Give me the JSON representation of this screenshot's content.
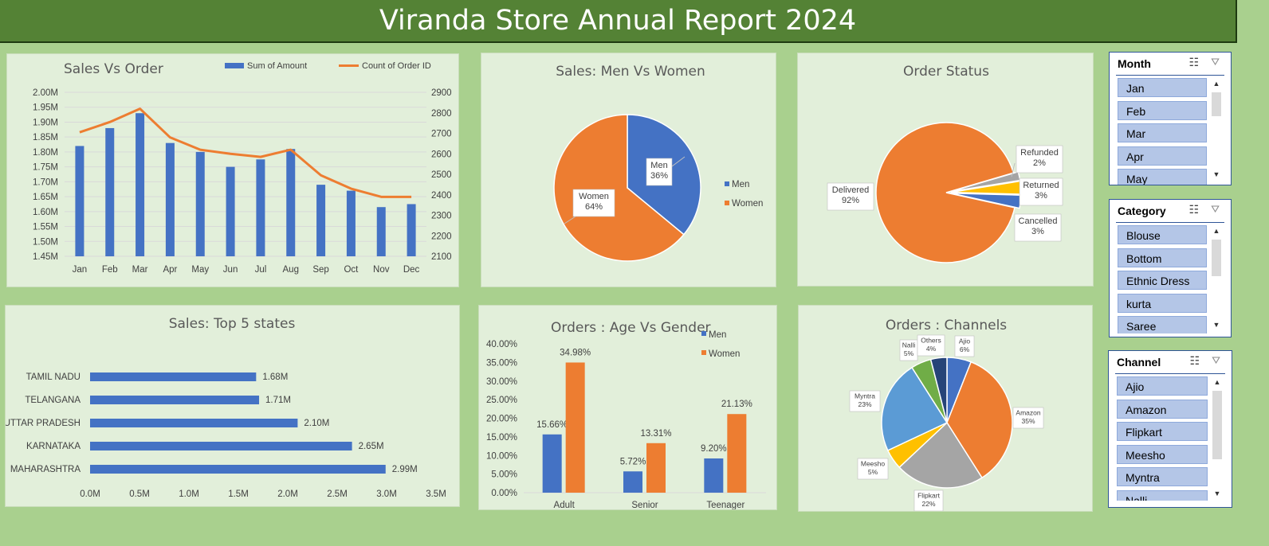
{
  "title": "Viranda Store Annual Report 2024",
  "colors": {
    "blue": "#4472c4",
    "orange": "#ed7d31",
    "gray": "#a5a5a5",
    "gold": "#ffc000",
    "lightblue": "#5b9bd5",
    "green": "#70ad47",
    "navy": "#264478"
  },
  "chart_data": [
    {
      "id": "sales_vs_order",
      "type": "bar",
      "title": "Sales Vs Order",
      "categories": [
        "Jan",
        "Feb",
        "Mar",
        "Apr",
        "May",
        "Jun",
        "Jul",
        "Aug",
        "Sep",
        "Oct",
        "Nov",
        "Dec"
      ],
      "series": [
        {
          "name": "Sum of Amount",
          "type": "bar",
          "axis": "left",
          "values": [
            1.82,
            1.88,
            1.93,
            1.83,
            1.8,
            1.75,
            1.775,
            1.81,
            1.69,
            1.67,
            1.615,
            1.625
          ]
        },
        {
          "name": "Count of Order ID",
          "type": "line",
          "axis": "right",
          "values": [
            2705,
            2755,
            2820,
            2680,
            2620,
            2600,
            2585,
            2620,
            2495,
            2430,
            2390,
            2390
          ]
        }
      ],
      "ylim_left": [
        1.45,
        2.0
      ],
      "ylim_right": [
        2100,
        2900
      ],
      "yticks_left": [
        "1.45M",
        "1.50M",
        "1.55M",
        "1.60M",
        "1.65M",
        "1.70M",
        "1.75M",
        "1.80M",
        "1.85M",
        "1.90M",
        "1.95M",
        "2.00M"
      ],
      "yticks_right": [
        "2100",
        "2200",
        "2300",
        "2400",
        "2500",
        "2600",
        "2700",
        "2800",
        "2900"
      ],
      "legend": "top-right",
      "grid": true
    },
    {
      "id": "sales_men_women",
      "type": "pie",
      "title": "Sales: Men Vs Women",
      "slices": [
        {
          "label": "Men",
          "percent_label": "36%",
          "value": 36
        },
        {
          "label": "Women",
          "percent_label": "64%",
          "value": 64
        }
      ],
      "legend": "right"
    },
    {
      "id": "order_status",
      "type": "pie",
      "title": "Order Status",
      "slices": [
        {
          "label": "Delivered",
          "percent_label": "92%",
          "value": 92
        },
        {
          "label": "Refunded",
          "percent_label": "2%",
          "value": 2
        },
        {
          "label": "Returned",
          "percent_label": "3%",
          "value": 3
        },
        {
          "label": "Cancelled",
          "percent_label": "3%",
          "value": 3
        }
      ]
    },
    {
      "id": "top5_states",
      "type": "bar",
      "orientation": "horizontal",
      "title": "Sales: Top 5 states",
      "categories": [
        "TAMIL NADU",
        "TELANGANA",
        "UTTAR PRADESH",
        "KARNATAKA",
        "MAHARASHTRA"
      ],
      "values": [
        1.68,
        1.71,
        2.1,
        2.65,
        2.99
      ],
      "value_labels": [
        "1.68M",
        "1.71M",
        "2.10M",
        "2.65M",
        "2.99M"
      ],
      "xlim": [
        0,
        3.5
      ],
      "xticks": [
        "0.0M",
        "0.5M",
        "1.0M",
        "1.5M",
        "2.0M",
        "2.5M",
        "3.0M",
        "3.5M"
      ]
    },
    {
      "id": "age_vs_gender",
      "type": "bar",
      "title": "Orders : Age Vs Gender",
      "categories": [
        "Adult",
        "Senior",
        "Teenager"
      ],
      "series": [
        {
          "name": "Men",
          "values": [
            15.66,
            5.72,
            9.2
          ],
          "labels": [
            "15.66%",
            "5.72%",
            "9.20%"
          ]
        },
        {
          "name": "Women",
          "values": [
            34.98,
            13.31,
            21.13
          ],
          "labels": [
            "34.98%",
            "13.31%",
            "21.13%"
          ]
        }
      ],
      "ylim": [
        0,
        40
      ],
      "yticks": [
        "0.00%",
        "5.00%",
        "10.00%",
        "15.00%",
        "20.00%",
        "25.00%",
        "30.00%",
        "35.00%",
        "40.00%"
      ],
      "legend": "top-right"
    },
    {
      "id": "orders_channels",
      "type": "pie",
      "title": "Orders : Channels",
      "slices": [
        {
          "label": "Ajio",
          "percent_label": "6%",
          "value": 6
        },
        {
          "label": "Amazon",
          "percent_label": "35%",
          "value": 35
        },
        {
          "label": "Flipkart",
          "percent_label": "22%",
          "value": 22
        },
        {
          "label": "Meesho",
          "percent_label": "5%",
          "value": 5
        },
        {
          "label": "Myntra",
          "percent_label": "23%",
          "value": 23
        },
        {
          "label": "Nalli",
          "percent_label": "5%",
          "value": 5
        },
        {
          "label": "Others",
          "percent_label": "4%",
          "value": 4
        }
      ]
    }
  ],
  "slicers": {
    "month": {
      "title": "Month",
      "items": [
        "Jan",
        "Feb",
        "Mar",
        "Apr",
        "May"
      ]
    },
    "category": {
      "title": "Category",
      "items": [
        "Blouse",
        "Bottom",
        "Ethnic Dress",
        "kurta",
        "Saree"
      ]
    },
    "channel": {
      "title": "Channel",
      "items": [
        "Ajio",
        "Amazon",
        "Flipkart",
        "Meesho",
        "Myntra",
        "Nalli"
      ]
    }
  },
  "icons": {
    "multi_select": "multi-select-icon",
    "clear_filter": "clear-filter-icon",
    "scroll_up": "scroll-up-icon",
    "scroll_down": "scroll-down-icon"
  }
}
